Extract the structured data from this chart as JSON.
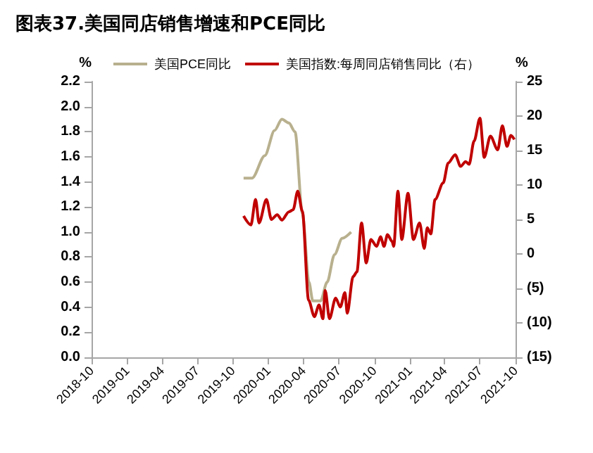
{
  "chart_data": {
    "type": "line",
    "title": "图表37.美国同店销售增速和PCE同比",
    "legend": "top",
    "grid": false,
    "marker": "none",
    "line_style": "solid",
    "xlim": [
      "2018-10",
      "2021-10"
    ],
    "xticks": [
      "2018-10",
      "2019-01",
      "2019-04",
      "2019-07",
      "2019-10",
      "2020-01",
      "2020-04",
      "2020-07",
      "2020-10",
      "2021-01",
      "2021-04",
      "2021-07",
      "2021-10"
    ],
    "ylabel": "%",
    "y2label": "%",
    "ylim": [
      0,
      2.2
    ],
    "yticks": [
      {
        "value": 0,
        "label": "0.0"
      },
      {
        "value": 0.2,
        "label": "0.2"
      },
      {
        "value": 0.4,
        "label": "0.4"
      },
      {
        "value": 0.6,
        "label": "0.6"
      },
      {
        "value": 0.8,
        "label": "0.8"
      },
      {
        "value": 1,
        "label": "1.0"
      },
      {
        "value": 1.2,
        "label": "1.2"
      },
      {
        "value": 1.4,
        "label": "1.4"
      },
      {
        "value": 1.6,
        "label": "1.6"
      },
      {
        "value": 1.8,
        "label": "1.8"
      },
      {
        "value": 2,
        "label": "2.0"
      },
      {
        "value": 2.2,
        "label": "2.2"
      }
    ],
    "y2lim": [
      -15,
      25
    ],
    "y2ticks": [
      {
        "value": -15,
        "label": "(15)"
      },
      {
        "value": -10,
        "label": "(10)"
      },
      {
        "value": -5,
        "label": "(5)"
      },
      0,
      5,
      10,
      15,
      20,
      25
    ],
    "series": [
      {
        "name": "美国PCE同比",
        "color": "#b8b08e",
        "x": [
          "2019-10-29",
          "2019-11-20",
          "2019-12-23",
          "2020-01-17",
          "2020-02-05",
          "2020-02-23",
          "2020-03-10",
          "2020-03-29",
          "2020-04-15",
          "2020-04-25",
          "2020-05-15",
          "2020-06-01",
          "2020-06-20",
          "2020-07-10",
          "2020-08-02"
        ],
        "values": [
          1.43,
          1.43,
          1.61,
          1.81,
          1.9,
          1.87,
          1.8,
          1.15,
          0.6,
          0.45,
          0.45,
          0.6,
          0.82,
          0.95,
          1.0
        ]
      },
      {
        "name": "美国指数:每周同店销售同比（右）",
        "color": "#c00000",
        "axis": "y2",
        "x": [
          "2019-10-29",
          "2019-11-17",
          "2019-11-29",
          "2019-12-08",
          "2019-12-27",
          "2020-01-09",
          "2020-01-24",
          "2020-02-05",
          "2020-02-23",
          "2020-03-05",
          "2020-03-17",
          "2020-03-29",
          "2020-04-14",
          "2020-04-29",
          "2020-05-11",
          "2020-05-21",
          "2020-05-27",
          "2020-06-07",
          "2020-06-23",
          "2020-07-05",
          "2020-07-17",
          "2020-07-23",
          "2020-08-07",
          "2020-08-17",
          "2020-08-29",
          "2020-09-10",
          "2020-09-22",
          "2020-10-07",
          "2020-10-17",
          "2020-10-26",
          "2020-11-04",
          "2020-11-16",
          "2020-11-20",
          "2020-12-01",
          "2020-12-11",
          "2020-12-27",
          "2021-01-10",
          "2021-01-26",
          "2021-02-07",
          "2021-02-15",
          "2021-02-24",
          "2021-03-07",
          "2021-03-28",
          "2021-04-10",
          "2021-04-28",
          "2021-05-12",
          "2021-05-25",
          "2021-06-03",
          "2021-06-16",
          "2021-07-01",
          "2021-07-12",
          "2021-07-28",
          "2021-08-16",
          "2021-08-28",
          "2021-09-09",
          "2021-09-19",
          "2021-09-28"
        ],
        "values": [
          5.5,
          4.2,
          7.9,
          4.5,
          7.9,
          5.0,
          5.7,
          4.9,
          6.1,
          6.4,
          9.1,
          6.2,
          -6.7,
          -9.1,
          -7.4,
          -9.4,
          -5.3,
          -9.4,
          -6.4,
          -7.7,
          -5.6,
          -8.6,
          -3.3,
          -2.6,
          4.5,
          -1.3,
          2.1,
          1.1,
          2.5,
          1.1,
          2.8,
          1.8,
          1.1,
          9.1,
          2.1,
          8.8,
          2.1,
          4.5,
          0.8,
          3.8,
          2.9,
          7.9,
          10.3,
          13.2,
          14.4,
          12.7,
          13.4,
          13.0,
          16.4,
          19.7,
          14.0,
          17.1,
          15.1,
          18.6,
          15.6,
          17.2,
          16.6
        ]
      }
    ]
  }
}
